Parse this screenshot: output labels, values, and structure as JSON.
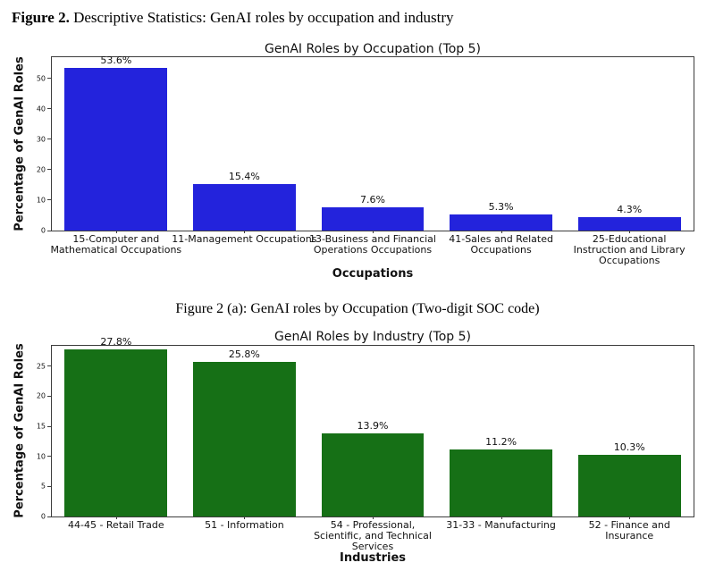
{
  "page": {
    "header_bold": "Figure 2.",
    "header_rest": " Descriptive Statistics: GenAI roles by occupation and industry",
    "caption": "Figure 2 (a): GenAI roles by Occupation (Two-digit SOC code)"
  },
  "colors": {
    "occupation_bar": "#2323dc",
    "industry_bar": "#167016",
    "axis": "#3c3c3c"
  },
  "chart_data": [
    {
      "type": "bar",
      "title": "GenAI Roles by Occupation (Top 5)",
      "xlabel": "Occupations",
      "ylabel": "Percentage of GenAI Roles",
      "categories": [
        "15-Computer and\nMathematical Occupations",
        "11-Management Occupations",
        "13-Business and Financial\nOperations Occupations",
        "41-Sales and Related\nOccupations",
        "25-Educational\nInstruction and Library\nOccupations"
      ],
      "values": [
        53.6,
        15.4,
        7.6,
        5.3,
        4.3
      ],
      "value_labels": [
        "53.6%",
        "15.4%",
        "7.6%",
        "5.3%",
        "4.3%"
      ],
      "ylim": [
        0,
        57
      ],
      "yticks": [
        0,
        10,
        20,
        30,
        40,
        50
      ],
      "bar_color": "#2323dc",
      "grid": false,
      "legend": "none"
    },
    {
      "type": "bar",
      "title": "GenAI Roles by Industry (Top 5)",
      "xlabel": "Industries",
      "ylabel": "Percentage of GenAI Roles",
      "categories": [
        "44-45 - Retail Trade",
        "51 - Information",
        "54 - Professional,\nScientific, and Technical\nServices",
        "31-33 - Manufacturing",
        "52 - Finance and\nInsurance"
      ],
      "values": [
        27.8,
        25.8,
        13.9,
        11.2,
        10.3
      ],
      "value_labels": [
        "27.8%",
        "25.8%",
        "13.9%",
        "11.2%",
        "10.3%"
      ],
      "ylim": [
        0,
        28.4
      ],
      "yticks": [
        0,
        5,
        10,
        15,
        20,
        25
      ],
      "bar_color": "#167016",
      "grid": false,
      "legend": "none"
    }
  ]
}
